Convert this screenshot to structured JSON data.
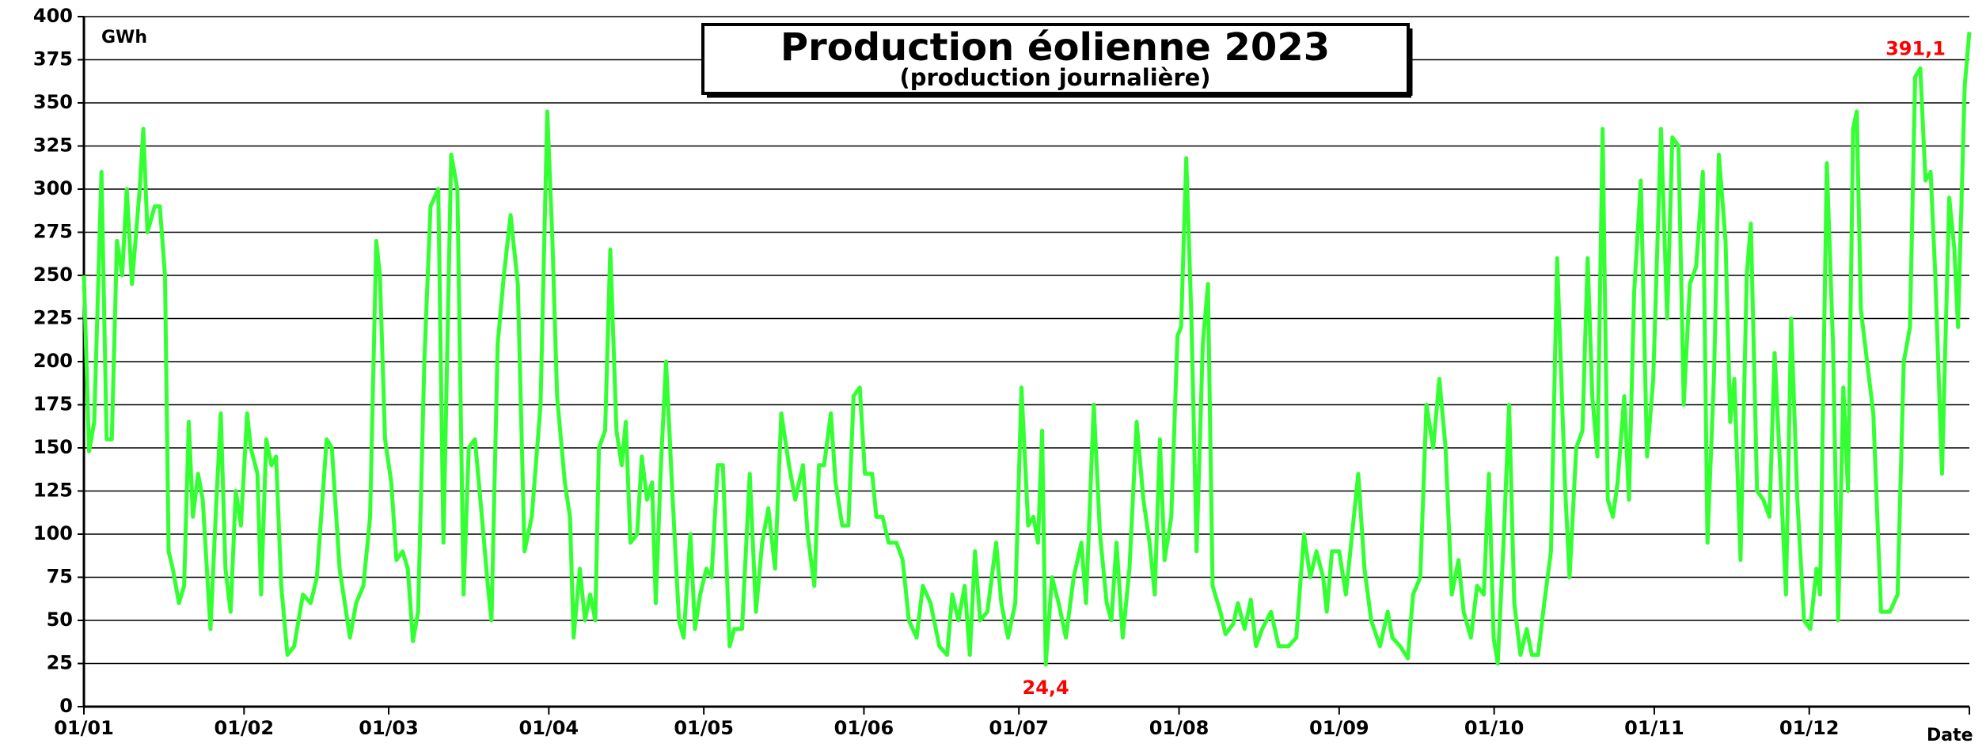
{
  "chart_data": {
    "type": "line",
    "title": "Production éolienne 2023",
    "subtitle": "(production journalière)",
    "y_label": "GWh",
    "x_label": "Date",
    "xlim": [
      0,
      365
    ],
    "xticks": [
      {
        "value": 0,
        "label": "01/01"
      },
      {
        "value": 31,
        "label": "01/02"
      },
      {
        "value": 59,
        "label": "01/03"
      },
      {
        "value": 90,
        "label": "01/04"
      },
      {
        "value": 120,
        "label": "01/05"
      },
      {
        "value": 151,
        "label": "01/06"
      },
      {
        "value": 181,
        "label": "01/07"
      },
      {
        "value": 212,
        "label": "01/08"
      },
      {
        "value": 243,
        "label": "01/09"
      },
      {
        "value": 273,
        "label": "01/10"
      },
      {
        "value": 304,
        "label": "01/11"
      },
      {
        "value": 334,
        "label": "01/12"
      }
    ],
    "ylim": [
      0,
      400
    ],
    "yticks": [
      0,
      25,
      50,
      75,
      100,
      125,
      150,
      175,
      200,
      225,
      250,
      275,
      300,
      325,
      350,
      375,
      400
    ],
    "grid": true,
    "color": "#33ff33",
    "label_color": "#ff0000",
    "x": [
      0,
      1,
      2,
      3.4,
      4.4,
      5.4,
      6.4,
      7.4,
      8.3,
      9.3,
      10.8,
      11.5,
      12.3,
      13.7,
      14.7,
      15.7,
      16.4,
      17.2,
      18.4,
      19.4,
      20.3,
      21.1,
      22.1,
      23,
      24.5,
      25.5,
      26.5,
      27.4,
      28.4,
      29.4,
      30.4,
      31.6,
      32.3,
      33.6,
      34.3,
      35.3,
      36.3,
      37.2,
      38.2,
      39.4,
      40.7,
      42.4,
      43.9,
      45.1,
      47,
      48,
      49.5,
      51.5,
      52.7,
      54.1,
      55.4,
      56.6,
      57.3,
      58.3,
      59.5,
      60.5,
      61.7,
      62.7,
      63.7,
      64.7,
      65.9,
      67.1,
      68.6,
      69.6,
      71.1,
      72.3,
      73.5,
      74.5,
      75.7,
      76.9,
      78.2,
      78.9,
      80.1,
      81.3,
      82.6,
      84,
      85.3,
      86.7,
      88.4,
      89.7,
      90.7,
      91.6,
      93.1,
      94.1,
      94.8,
      96,
      97,
      98,
      99,
      99.7,
      100.9,
      101.9,
      103.1,
      104.1,
      104.9,
      105.8,
      107.1,
      108,
      109,
      110,
      110.7,
      111.7,
      112.7,
      113.9,
      115.2,
      116.1,
      117.4,
      118.3,
      119.3,
      120.5,
      121.5,
      122.7,
      123.7,
      125,
      125.9,
      127.4,
      128.9,
      130.1,
      131.3,
      132.5,
      133.8,
      135,
      136.5,
      137.7,
      139.2,
      140.1,
      141.4,
      142.3,
      143.3,
      144.6,
      145.5,
      146.8,
      148,
      149,
      150.2,
      151.2,
      152.6,
      153.4,
      154.6,
      155.8,
      157.3,
      158.5,
      159.7,
      161.2,
      162.4,
      163.9,
      165.6,
      167.1,
      168.1,
      169.3,
      170.5,
      171.5,
      172.5,
      173.5,
      174.9,
      176.6,
      177.6,
      178.9,
      180.3,
      181.5,
      182.8,
      183.8,
      184.7,
      185.5,
      186.2,
      187.4,
      188.7,
      190.1,
      191.6,
      193.1,
      194,
      195.5,
      196.7,
      198,
      198.9,
      199.9,
      201.1,
      202.4,
      203.8,
      205.1,
      206.3,
      207.3,
      208.3,
      209.2,
      210.5,
      211.7,
      212.4,
      213.4,
      214.4,
      215.4,
      216.6,
      217.6,
      218.5,
      220,
      221,
      222.5,
      223.4,
      224.7,
      225.9,
      226.9,
      228.1,
      229.8,
      231.3,
      233.2,
      234.7,
      236.2,
      237.4,
      238.6,
      239.9,
      240.6,
      241.6,
      243,
      244.3,
      245.5,
      246.7,
      247.9,
      249.2,
      250.9,
      252.4,
      253.3,
      254.8,
      256.3,
      257.3,
      258.7,
      259.9,
      261.2,
      262.4,
      263.6,
      264.8,
      266.1,
      267.1,
      268.5,
      269.7,
      271,
      272,
      272.9,
      273.7,
      274.9,
      275.9,
      276.9,
      278.1,
      279.3,
      280.3,
      281.5,
      282.7,
      284,
      285.2,
      286.7,
      287.6,
      288.9,
      290.1,
      291.1,
      292,
      293,
      294,
      295,
      296,
      296.9,
      298.2,
      299.1,
      300.1,
      301.4,
      302.6,
      303.8,
      305.3,
      306.5,
      307.5,
      308.7,
      309.7,
      310.9,
      312.1,
      313.4,
      314.3,
      315.6,
      316.5,
      317.8,
      318.7,
      319.5,
      320.7,
      321.9,
      322.7,
      323.9,
      325.1,
      326.3,
      327.3,
      328.5,
      329.5,
      330.5,
      331.7,
      333,
      334.2,
      335.4,
      336.1,
      337.4,
      338.6,
      339.6,
      340.6,
      341.5,
      342.5,
      343.2,
      344,
      345.2,
      346.4,
      347.9,
      349.6,
      351.1,
      352.3,
      353.5,
      354.5,
      355.5,
      356.5,
      357.5,
      358.4,
      359.7,
      361.1,
      362.1,
      362.8,
      364.1,
      365
    ],
    "values": [
      250,
      148,
      165,
      310,
      155,
      155,
      270,
      250,
      300,
      245,
      300,
      335,
      275,
      290,
      290,
      250,
      90,
      80,
      60,
      70,
      165,
      110,
      135,
      120,
      45,
      110,
      170,
      80,
      55,
      125,
      105,
      170,
      150,
      135,
      65,
      155,
      140,
      145,
      70,
      30,
      35,
      65,
      60,
      75,
      155,
      150,
      80,
      40,
      60,
      70,
      110,
      270,
      250,
      155,
      130,
      85,
      90,
      80,
      38,
      55,
      200,
      290,
      300,
      95,
      320,
      300,
      65,
      150,
      155,
      115,
      70,
      50,
      210,
      250,
      285,
      245,
      90,
      110,
      175,
      345,
      270,
      180,
      130,
      110,
      40,
      80,
      50,
      65,
      50,
      150,
      160,
      265,
      160,
      140,
      165,
      95,
      100,
      145,
      120,
      130,
      60,
      140,
      200,
      125,
      50,
      40,
      100,
      45,
      65,
      80,
      75,
      140,
      140,
      35,
      45,
      45,
      135,
      55,
      95,
      115,
      80,
      170,
      140,
      120,
      140,
      100,
      70,
      140,
      140,
      170,
      130,
      105,
      105,
      180,
      185,
      135,
      135,
      110,
      110,
      95,
      95,
      85,
      50,
      40,
      70,
      60,
      35,
      30,
      65,
      50,
      70,
      30,
      90,
      50,
      55,
      95,
      60,
      40,
      60,
      185,
      105,
      110,
      95,
      160,
      24.4,
      75,
      60,
      40,
      75,
      95,
      60,
      175,
      100,
      60,
      50,
      95,
      40,
      80,
      165,
      120,
      95,
      65,
      155,
      85,
      110,
      215,
      220,
      318,
      225,
      90,
      210,
      245,
      70,
      55,
      42,
      48,
      60,
      45,
      62,
      35,
      45,
      55,
      35,
      35,
      40,
      100,
      75,
      90,
      75,
      55,
      90,
      90,
      65,
      100,
      135,
      80,
      50,
      35,
      55,
      40,
      35,
      28,
      65,
      75,
      175,
      150,
      190,
      150,
      65,
      85,
      55,
      40,
      70,
      65,
      135,
      40,
      25,
      100,
      175,
      60,
      30,
      45,
      30,
      30,
      60,
      90,
      260,
      130,
      75,
      150,
      160,
      260,
      180,
      145,
      335,
      120,
      110,
      130,
      180,
      120,
      240,
      305,
      145,
      190,
      335,
      225,
      330,
      325,
      175,
      245,
      255,
      310,
      95,
      195,
      320,
      270,
      165,
      190,
      85,
      250,
      280,
      125,
      120,
      110,
      205,
      130,
      65,
      225,
      120,
      50,
      45,
      80,
      65,
      315,
      210,
      50,
      185,
      125,
      335,
      345,
      230,
      200,
      170,
      55,
      55,
      65,
      200,
      220,
      365,
      370,
      305,
      310,
      250,
      135,
      295,
      265,
      220,
      360,
      391.1
    ],
    "value_labels": [
      null,
      null,
      null,
      null,
      null,
      null,
      null,
      null,
      null,
      null,
      null,
      null,
      null,
      null,
      null,
      null,
      null,
      null,
      null,
      null,
      null,
      null,
      null,
      null,
      null,
      null,
      null,
      null,
      null,
      null,
      null,
      null,
      null,
      null,
      null,
      null,
      null,
      null,
      null,
      null,
      null,
      null,
      null,
      null,
      null,
      null,
      null,
      null,
      null,
      null,
      null,
      null,
      null,
      null,
      null,
      null,
      null,
      null,
      null,
      null,
      null,
      null,
      null,
      null,
      null,
      null,
      null,
      null,
      null,
      null,
      null,
      null,
      null,
      null,
      null,
      null,
      null,
      null,
      null,
      null,
      null,
      null,
      null,
      null,
      null,
      null,
      null,
      null,
      null,
      null,
      null,
      null,
      null,
      null,
      null,
      null,
      null,
      null,
      null,
      null,
      null,
      null,
      null,
      null,
      null,
      null,
      null,
      null,
      null,
      null,
      null,
      null,
      null,
      null,
      null,
      null,
      null,
      null,
      null,
      null,
      null,
      null,
      null,
      null,
      null,
      null,
      null,
      null,
      null,
      null,
      null,
      null,
      null,
      null,
      null,
      null,
      null,
      null,
      null,
      null,
      null,
      null,
      null,
      null,
      null,
      null,
      null,
      null,
      null,
      null,
      null,
      null,
      null,
      null,
      null,
      null,
      null,
      null,
      null,
      null,
      null,
      null,
      null,
      null,
      "24,4",
      null,
      null,
      null,
      null,
      null,
      null,
      null,
      null,
      null,
      null,
      null,
      null,
      null,
      null,
      null,
      null,
      null,
      null,
      null,
      null,
      null,
      null,
      null,
      null,
      null,
      null,
      null,
      null,
      null,
      null,
      null,
      null,
      null,
      null,
      null,
      null,
      null,
      null,
      null,
      null,
      null,
      null,
      null,
      null,
      null,
      null,
      null,
      null,
      null,
      null,
      null,
      null,
      null,
      null,
      null,
      null,
      null,
      null,
      null,
      null,
      null,
      null,
      null,
      null,
      null,
      null,
      null,
      null,
      null,
      null,
      null,
      null,
      null,
      null,
      null,
      null,
      null,
      null,
      null,
      null,
      null,
      null,
      null,
      null,
      null,
      null,
      null,
      null,
      null,
      null,
      null,
      null,
      null,
      null,
      null,
      null,
      null,
      null,
      null,
      null,
      null,
      null,
      null,
      null,
      null,
      null,
      null,
      null,
      null,
      null,
      null,
      null,
      null,
      null,
      null,
      null,
      null,
      null,
      null,
      null,
      null,
      null,
      null,
      null,
      null,
      null,
      null,
      null,
      null,
      null,
      null,
      null,
      null,
      null,
      null,
      null,
      null,
      null,
      null,
      null,
      null,
      null,
      null,
      null,
      null,
      null,
      null,
      null,
      null,
      null,
      null,
      null,
      null,
      "391,1"
    ]
  }
}
